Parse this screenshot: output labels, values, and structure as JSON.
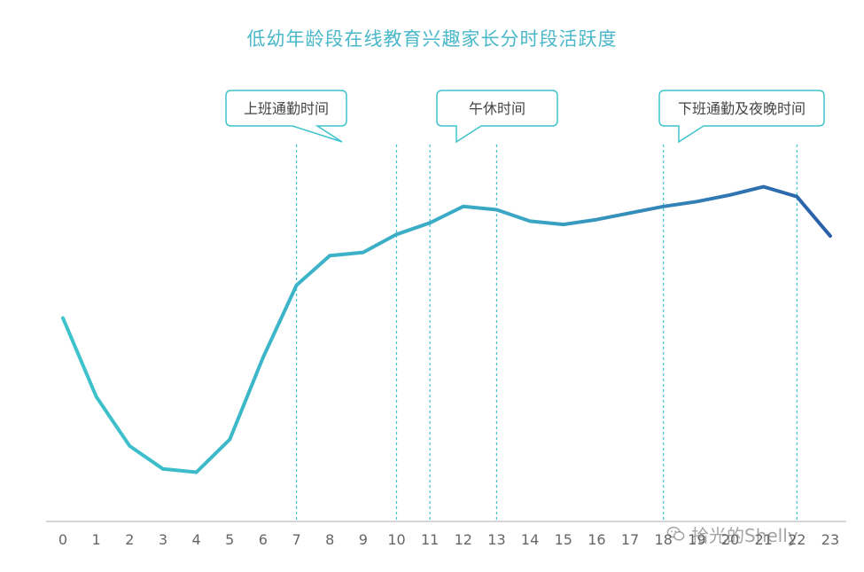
{
  "chart_data": {
    "type": "line",
    "title": "低幼年龄段在线教育兴趣家长分时段活跃度",
    "xlabel": "",
    "ylabel": "",
    "x": [
      0,
      1,
      2,
      3,
      4,
      5,
      6,
      7,
      8,
      9,
      10,
      11,
      12,
      13,
      14,
      15,
      16,
      17,
      18,
      19,
      20,
      21,
      22,
      23
    ],
    "categories": [
      "0",
      "1",
      "2",
      "3",
      "4",
      "5",
      "6",
      "7",
      "8",
      "9",
      "10",
      "11",
      "12",
      "13",
      "14",
      "15",
      "16",
      "17",
      "18",
      "19",
      "20",
      "21",
      "22",
      "23"
    ],
    "values": [
      62,
      38,
      23,
      16,
      15,
      25,
      50,
      72,
      81,
      82,
      87.5,
      91,
      96,
      95,
      91.5,
      90.5,
      92,
      94,
      96,
      97.5,
      99.5,
      102,
      99,
      87
    ],
    "ylim": [
      0,
      105
    ],
    "grid": false,
    "line_color_start": "#3ec3cc",
    "line_color_end": "#2a5fa8",
    "guide_lines_at": [
      7,
      10,
      11,
      13,
      18,
      22
    ],
    "guide_color": "#3ec3cc",
    "annotations": [
      {
        "label": "上班通勤时间",
        "x_from": 7,
        "x_to": 10
      },
      {
        "label": "午休时间",
        "x_from": 11,
        "x_to": 13
      },
      {
        "label": "下班通勤及夜晚时间",
        "x_from": 18,
        "x_to": 22
      }
    ]
  },
  "watermark": {
    "text": "拾光的Shelly",
    "icon": "wechat-icon"
  }
}
